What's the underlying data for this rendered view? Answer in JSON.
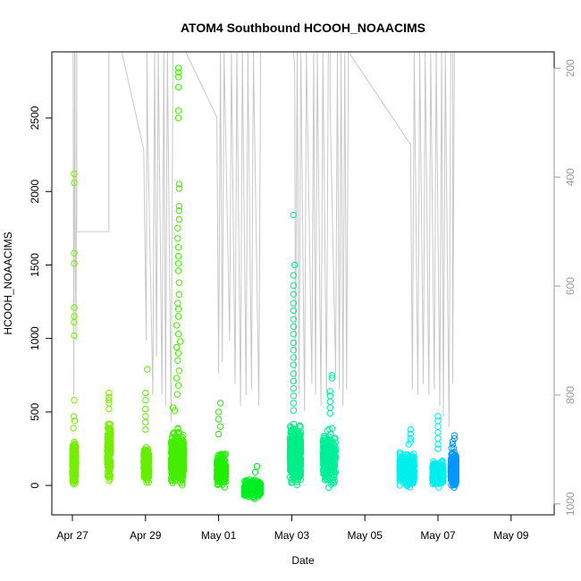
{
  "chart_data": {
    "type": "scatter",
    "title": "ATOM4 Southbound HCOOH_NOAACIMS",
    "xlabel": "Date",
    "ylabel": "HCOOH_NOAACIMS",
    "x_unit": "day (0 = Apr 27)",
    "xlim": [
      -0.45,
      10.45
    ],
    "ylim": [
      -200,
      2950
    ],
    "x_ticks": [
      {
        "value": 0,
        "label": "Apr 27"
      },
      {
        "value": 2,
        "label": "Apr 29"
      },
      {
        "value": 4,
        "label": "May 01"
      },
      {
        "value": 6,
        "label": "May 03"
      },
      {
        "value": 8,
        "label": "May 05"
      },
      {
        "value": 10,
        "label": "May 07"
      },
      {
        "value": 12,
        "label": "May 09"
      }
    ],
    "y_ticks": [
      0,
      500,
      1000,
      1500,
      2000,
      2500
    ],
    "secondary_axis": {
      "label": "",
      "ylim": [
        1020,
        170
      ],
      "ticks": [
        200,
        400,
        600,
        800,
        1000
      ],
      "color": "#9a9a9a",
      "series_color": "#c8c8c8"
    },
    "grid": false,
    "legend": "none",
    "series": [
      {
        "color": "#77ee00",
        "x_range": [
          0.0,
          0.1
        ],
        "y_lo": -20,
        "y_hi": 330,
        "n": 260,
        "outliers": [
          [
            0.05,
            2120
          ],
          [
            0.05,
            2060
          ],
          [
            0.05,
            1580
          ],
          [
            0.05,
            1510
          ],
          [
            0.05,
            1210
          ],
          [
            0.05,
            1150
          ],
          [
            0.05,
            1110
          ],
          [
            0.05,
            1020
          ],
          [
            0.05,
            580
          ],
          [
            0.04,
            470
          ],
          [
            0.06,
            440
          ],
          [
            0.03,
            390
          ]
        ]
      },
      {
        "color": "#77ee00",
        "x_range": [
          0.95,
          1.05
        ],
        "y_lo": 0,
        "y_hi": 470,
        "n": 200,
        "outliers": [
          [
            1.0,
            630
          ],
          [
            1.0,
            600
          ],
          [
            1.0,
            580
          ],
          [
            1.0,
            560
          ],
          [
            1.0,
            520
          ]
        ]
      },
      {
        "color": "#66ee00",
        "x_range": [
          1.95,
          2.1
        ],
        "y_lo": -20,
        "y_hi": 280,
        "n": 240,
        "outliers": [
          [
            2.05,
            790
          ],
          [
            2.0,
            630
          ],
          [
            2.0,
            580
          ],
          [
            2.0,
            520
          ],
          [
            2.0,
            470
          ],
          [
            2.0,
            430
          ],
          [
            2.0,
            380
          ]
        ]
      },
      {
        "color": "#44ee00",
        "x_range": [
          2.7,
          3.05
        ],
        "y_lo": -50,
        "y_hi": 420,
        "n": 600,
        "outliers": [
          [
            2.9,
            2840
          ],
          [
            2.9,
            2810
          ],
          [
            2.9,
            2780
          ],
          [
            2.9,
            2710
          ],
          [
            2.9,
            2550
          ],
          [
            2.9,
            2500
          ],
          [
            2.92,
            2050
          ],
          [
            2.92,
            2020
          ],
          [
            2.92,
            1900
          ],
          [
            2.92,
            1870
          ],
          [
            2.92,
            1810
          ],
          [
            2.88,
            1750
          ],
          [
            2.88,
            1680
          ],
          [
            2.9,
            1620
          ],
          [
            2.9,
            1560
          ],
          [
            2.9,
            1510
          ],
          [
            2.9,
            1460
          ],
          [
            2.92,
            1380
          ],
          [
            2.92,
            1300
          ],
          [
            2.88,
            1240
          ],
          [
            2.9,
            1200
          ],
          [
            2.9,
            1150
          ],
          [
            2.85,
            1090
          ],
          [
            2.9,
            1030
          ],
          [
            2.95,
            980
          ],
          [
            2.85,
            940
          ],
          [
            2.9,
            900
          ],
          [
            2.88,
            850
          ],
          [
            2.92,
            780
          ],
          [
            2.85,
            730
          ],
          [
            2.9,
            680
          ],
          [
            2.87,
            620
          ],
          [
            2.75,
            530
          ],
          [
            2.8,
            510
          ]
        ]
      },
      {
        "color": "#22ee00",
        "x_range": [
          3.95,
          4.2
        ],
        "y_lo": -30,
        "y_hi": 240,
        "n": 240,
        "outliers": [
          [
            4.05,
            560
          ],
          [
            4.0,
            500
          ],
          [
            4.0,
            450
          ],
          [
            4.05,
            400
          ],
          [
            4.0,
            350
          ]
        ]
      },
      {
        "color": "#00ee22",
        "x_range": [
          4.7,
          5.15
        ],
        "y_lo": -100,
        "y_hi": 60,
        "n": 260,
        "outliers": [
          [
            5.05,
            130
          ],
          [
            5.0,
            90
          ]
        ]
      },
      {
        "color": "#00ee88",
        "x_range": [
          5.95,
          6.25
        ],
        "y_lo": -30,
        "y_hi": 450,
        "n": 620,
        "outliers": [
          [
            6.05,
            1840
          ],
          [
            6.08,
            1500
          ],
          [
            6.05,
            1430
          ],
          [
            6.05,
            1360
          ],
          [
            6.05,
            1300
          ],
          [
            6.05,
            1240
          ],
          [
            6.05,
            1190
          ],
          [
            6.05,
            1130
          ],
          [
            6.05,
            1080
          ],
          [
            6.05,
            1030
          ],
          [
            6.05,
            970
          ],
          [
            6.05,
            920
          ],
          [
            6.05,
            870
          ],
          [
            6.05,
            820
          ],
          [
            6.05,
            760
          ],
          [
            6.05,
            710
          ],
          [
            6.05,
            660
          ],
          [
            6.05,
            610
          ],
          [
            6.05,
            560
          ],
          [
            6.05,
            510
          ]
        ]
      },
      {
        "color": "#00ee99",
        "x_range": [
          6.85,
          7.2
        ],
        "y_lo": -60,
        "y_hi": 420,
        "n": 320,
        "outliers": [
          [
            7.1,
            750
          ],
          [
            7.1,
            730
          ],
          [
            7.05,
            640
          ],
          [
            7.05,
            610
          ],
          [
            7.05,
            570
          ],
          [
            7.05,
            530
          ],
          [
            7.05,
            490
          ]
        ]
      },
      {
        "color": "#00eeee",
        "x_range": [
          8.95,
          9.35
        ],
        "y_lo": -20,
        "y_hi": 240,
        "n": 520,
        "outliers": [
          [
            9.25,
            380
          ],
          [
            9.25,
            350
          ],
          [
            9.25,
            320
          ],
          [
            9.25,
            300
          ],
          [
            9.2,
            280
          ]
        ]
      },
      {
        "color": "#00eeee",
        "x_range": [
          9.85,
          10.15
        ],
        "y_lo": -20,
        "y_hi": 180,
        "n": 320,
        "outliers": [
          [
            10.0,
            470
          ],
          [
            10.0,
            440
          ],
          [
            10.0,
            400
          ],
          [
            10.0,
            360
          ],
          [
            10.0,
            320
          ],
          [
            10.0,
            280
          ],
          [
            10.0,
            250
          ]
        ]
      },
      {
        "color": "#0099ff",
        "x_range": [
          10.35,
          10.5
        ],
        "y_lo": -40,
        "y_hi": 260,
        "n": 480,
        "outliers": [
          [
            10.45,
            340
          ],
          [
            10.45,
            320
          ],
          [
            10.4,
            300
          ],
          [
            10.4,
            280
          ]
        ]
      }
    ],
    "altitude_trace": [
      [
        -0.42,
        170
      ],
      [
        0.02,
        170
      ],
      [
        0.04,
        800
      ],
      [
        0.06,
        170
      ],
      [
        0.07,
        170
      ],
      [
        0.07,
        450
      ],
      [
        0.1,
        700
      ],
      [
        0.12,
        170
      ],
      [
        0.12,
        500
      ],
      [
        1.0,
        500
      ],
      [
        1.0,
        170
      ],
      [
        1.35,
        170
      ],
      [
        1.95,
        350
      ],
      [
        2.02,
        700
      ],
      [
        2.04,
        170
      ],
      [
        2.06,
        320
      ],
      [
        2.2,
        800
      ],
      [
        2.25,
        170
      ],
      [
        2.3,
        730
      ],
      [
        2.35,
        170
      ],
      [
        2.45,
        800
      ],
      [
        2.5,
        170
      ],
      [
        2.55,
        820
      ],
      [
        2.6,
        170
      ],
      [
        2.7,
        850
      ],
      [
        2.75,
        170
      ],
      [
        3.1,
        170
      ],
      [
        3.95,
        290
      ],
      [
        4.0,
        760
      ],
      [
        4.05,
        170
      ],
      [
        4.1,
        740
      ],
      [
        4.15,
        170
      ],
      [
        4.3,
        700
      ],
      [
        4.35,
        170
      ],
      [
        4.45,
        780
      ],
      [
        4.5,
        170
      ],
      [
        4.6,
        820
      ],
      [
        4.65,
        170
      ],
      [
        4.75,
        800
      ],
      [
        4.8,
        170
      ],
      [
        4.9,
        790
      ],
      [
        4.95,
        170
      ],
      [
        5.1,
        820
      ],
      [
        5.15,
        170
      ],
      [
        6.05,
        170
      ],
      [
        6.08,
        200
      ],
      [
        6.1,
        780
      ],
      [
        6.15,
        170
      ],
      [
        6.2,
        800
      ],
      [
        6.25,
        170
      ],
      [
        6.35,
        830
      ],
      [
        6.4,
        170
      ],
      [
        6.55,
        780
      ],
      [
        6.6,
        170
      ],
      [
        6.65,
        800
      ],
      [
        6.7,
        170
      ],
      [
        6.8,
        820
      ],
      [
        6.85,
        170
      ],
      [
        6.95,
        800
      ],
      [
        7.0,
        170
      ],
      [
        7.05,
        170
      ],
      [
        7.05,
        270
      ],
      [
        7.2,
        760
      ],
      [
        7.25,
        170
      ],
      [
        7.3,
        790
      ],
      [
        7.35,
        170
      ],
      [
        7.4,
        820
      ],
      [
        7.45,
        170
      ],
      [
        7.5,
        790
      ],
      [
        7.55,
        170
      ],
      [
        9.25,
        340
      ],
      [
        9.3,
        790
      ],
      [
        9.35,
        170
      ],
      [
        9.45,
        800
      ],
      [
        9.5,
        170
      ],
      [
        9.6,
        780
      ],
      [
        9.65,
        170
      ],
      [
        9.75,
        800
      ],
      [
        9.8,
        170
      ],
      [
        9.9,
        790
      ],
      [
        9.95,
        170
      ],
      [
        10.05,
        820
      ],
      [
        10.1,
        170
      ],
      [
        10.15,
        840
      ],
      [
        10.2,
        170
      ],
      [
        10.3,
        860
      ],
      [
        10.35,
        170
      ],
      [
        10.4,
        170
      ],
      [
        10.4,
        780
      ],
      [
        10.45,
        170
      ],
      [
        10.5,
        170
      ]
    ]
  }
}
